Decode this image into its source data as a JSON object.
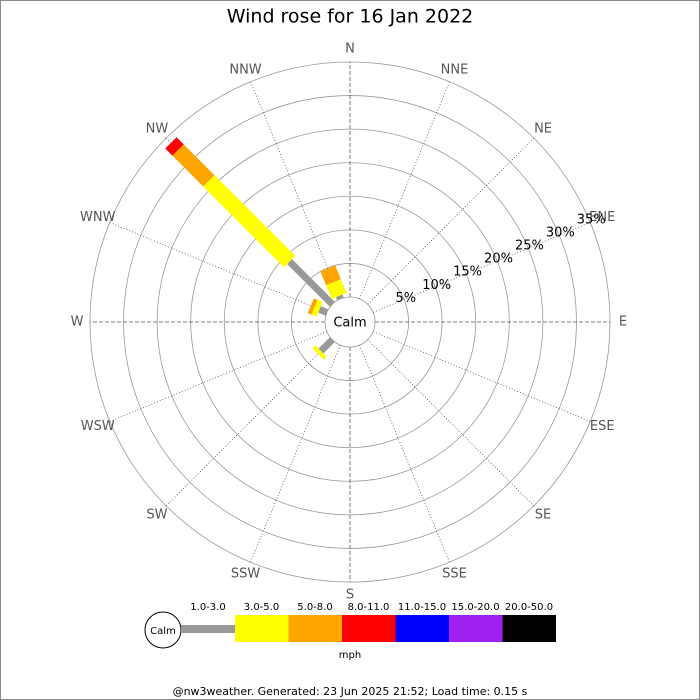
{
  "chart_data": {
    "type": "windrose",
    "title": "Wind rose for 16 Jan 2022",
    "calm_label": "Calm",
    "unit": "mph",
    "footer": "@nw3weather. Generated: 23 Jun 2025 21:52; Load time: 0.15 s",
    "directions": [
      "N",
      "NNE",
      "NE",
      "ENE",
      "E",
      "ESE",
      "SE",
      "SSE",
      "S",
      "SSW",
      "SW",
      "WSW",
      "W",
      "WNW",
      "NW",
      "NNW"
    ],
    "rlim": [
      0,
      35
    ],
    "rticks": [
      {
        "value": 5,
        "label": "5%"
      },
      {
        "value": 10,
        "label": "10%"
      },
      {
        "value": 15,
        "label": "15%"
      },
      {
        "value": 20,
        "label": "20%"
      },
      {
        "value": 25,
        "label": "25%"
      },
      {
        "value": 30,
        "label": "30%"
      },
      {
        "value": 35,
        "label": "35%"
      }
    ],
    "series": [
      {
        "name": "1.0-3.0",
        "color": "#999999",
        "values": [
          0,
          0,
          0,
          0,
          0,
          0,
          0,
          0,
          0,
          0,
          2.4,
          0,
          0,
          1.2,
          9,
          0.5
        ]
      },
      {
        "name": "3.0-5.0",
        "color": "#ffff00",
        "values": [
          0,
          0,
          0,
          0,
          0,
          0,
          0,
          0,
          0,
          0,
          0.6,
          0,
          0,
          0.8,
          17,
          2.2
        ]
      },
      {
        "name": "5.0-8.0",
        "color": "#ffa500",
        "values": [
          0,
          0,
          0,
          0,
          0,
          0,
          0,
          0,
          0,
          0,
          0,
          0,
          0,
          0.6,
          6.5,
          2.2
        ]
      },
      {
        "name": "8.0-11.0",
        "color": "#ff0000",
        "values": [
          0,
          0,
          0,
          0,
          0,
          0,
          0,
          0,
          0,
          0,
          0,
          0,
          0,
          0,
          1.5,
          0
        ]
      },
      {
        "name": "11.0-15.0",
        "color": "#0000ff",
        "values": [
          0,
          0,
          0,
          0,
          0,
          0,
          0,
          0,
          0,
          0,
          0,
          0,
          0,
          0,
          0,
          0
        ]
      },
      {
        "name": "15.0-20.0",
        "color": "#a020f0",
        "values": [
          0,
          0,
          0,
          0,
          0,
          0,
          0,
          0,
          0,
          0,
          0,
          0,
          0,
          0,
          0,
          0
        ]
      },
      {
        "name": "20.0-50.0",
        "color": "#000000",
        "values": [
          0,
          0,
          0,
          0,
          0,
          0,
          0,
          0,
          0,
          0,
          0,
          0,
          0,
          0,
          0,
          0
        ]
      }
    ]
  }
}
